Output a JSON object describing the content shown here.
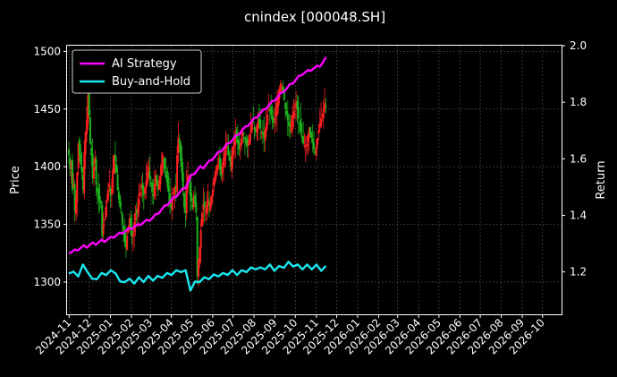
{
  "chart_data": {
    "type": "line",
    "title": "cnindex [000048.SH]",
    "ylabel_left": "Price",
    "ylabel_right": "Return",
    "x_ticks": [
      "2024-11",
      "2024-12",
      "2025-01",
      "2025-02",
      "2025-03",
      "2025-04",
      "2025-05",
      "2025-06",
      "2025-07",
      "2025-08",
      "2025-09",
      "2025-10",
      "2025-11",
      "2025-12",
      "2026-01",
      "2026-02",
      "2026-03",
      "2026-04",
      "2026-05",
      "2026-06",
      "2026-07",
      "2026-08",
      "2026-09",
      "2026-10"
    ],
    "x_range": [
      "2024-10-29",
      "2026-10-29"
    ],
    "y_left_ticks": [
      1300,
      1350,
      1400,
      1450,
      1500
    ],
    "y_left_range": [
      1272,
      1505
    ],
    "y_right_ticks": [
      1.2,
      1.4,
      1.6,
      1.8,
      2.0
    ],
    "y_right_range": [
      1.05,
      2.0
    ],
    "grid": true,
    "legend_position": "top-left",
    "colors": {
      "up": "#ff2020",
      "down": "#1db31d",
      "ai": "#ff00ff",
      "bh": "#1ae8f0",
      "grid": "#555555"
    },
    "candles": {
      "description": "daily OHLC candlesticks, red = up, green = down",
      "close": [
        1410,
        1398,
        1405,
        1380,
        1385,
        1362,
        1372,
        1395,
        1420,
        1410,
        1402,
        1395,
        1380,
        1412,
        1430,
        1440,
        1462,
        1445,
        1420,
        1410,
        1390,
        1400,
        1408,
        1385,
        1378,
        1372,
        1370,
        1368,
        1340,
        1350,
        1355,
        1365,
        1370,
        1380,
        1385,
        1375,
        1380,
        1398,
        1410,
        1405,
        1395,
        1380,
        1372,
        1365,
        1360,
        1350,
        1345,
        1335,
        1330,
        1340,
        1348,
        1355,
        1345,
        1340,
        1342,
        1352,
        1360,
        1358,
        1365,
        1372,
        1378,
        1385,
        1380,
        1375,
        1382,
        1388,
        1395,
        1400,
        1390,
        1385,
        1378,
        1375,
        1385,
        1392,
        1385,
        1380,
        1388,
        1392,
        1400,
        1410,
        1405,
        1398,
        1390,
        1382,
        1378,
        1370,
        1365,
        1372,
        1378,
        1382,
        1380,
        1410,
        1425,
        1420,
        1405,
        1395,
        1380,
        1365,
        1360,
        1385,
        1392,
        1390,
        1375,
        1370,
        1365,
        1375,
        1368,
        1360,
        1305,
        1320,
        1330,
        1345,
        1360,
        1368,
        1365,
        1362,
        1370,
        1372,
        1366,
        1370,
        1375,
        1380,
        1390,
        1395,
        1400,
        1402,
        1405,
        1398,
        1392,
        1400,
        1408,
        1412,
        1420,
        1418,
        1410,
        1405,
        1400,
        1410,
        1418,
        1422,
        1428,
        1425,
        1420,
        1415,
        1418,
        1425,
        1430,
        1428,
        1424,
        1420,
        1418,
        1422,
        1428,
        1435,
        1440,
        1438,
        1432,
        1430,
        1436,
        1440,
        1438,
        1433,
        1430,
        1428,
        1425,
        1432,
        1438,
        1445,
        1450,
        1448,
        1445,
        1440,
        1438,
        1442,
        1448,
        1455,
        1460,
        1468,
        1472,
        1470,
        1465,
        1458,
        1450,
        1445,
        1440,
        1435,
        1432,
        1438,
        1445,
        1448,
        1452,
        1455,
        1450,
        1442,
        1438,
        1430,
        1425,
        1420,
        1418,
        1415,
        1420,
        1428,
        1433,
        1428,
        1425,
        1420,
        1415,
        1412,
        1418,
        1425,
        1432,
        1438,
        1442,
        1445,
        1450,
        1455,
        1452
      ]
    },
    "series": [
      {
        "name": "AI Strategy",
        "axis": "right",
        "values": [
          1.27,
          1.27,
          1.275,
          1.28,
          1.285,
          1.29,
          1.29,
          1.295,
          1.3,
          1.3,
          1.305,
          1.31,
          1.31,
          1.315,
          1.32,
          1.325,
          1.33,
          1.335,
          1.34,
          1.345,
          1.35,
          1.355,
          1.36,
          1.365,
          1.37,
          1.375,
          1.38,
          1.385,
          1.39,
          1.4,
          1.41,
          1.42,
          1.43,
          1.44,
          1.45,
          1.46,
          1.47,
          1.48,
          1.49,
          1.5,
          1.52,
          1.54,
          1.55,
          1.56,
          1.57,
          1.57,
          1.58,
          1.59,
          1.6,
          1.61,
          1.62,
          1.63,
          1.64,
          1.65,
          1.66,
          1.67,
          1.68,
          1.69,
          1.7,
          1.71,
          1.72,
          1.73,
          1.74,
          1.75,
          1.76,
          1.77,
          1.78,
          1.79,
          1.8,
          1.81,
          1.82,
          1.83,
          1.84,
          1.85,
          1.86,
          1.87,
          1.88,
          1.89,
          1.9,
          1.905,
          1.91,
          1.915,
          1.92,
          1.925,
          1.93,
          1.94,
          1.955
        ]
      },
      {
        "name": "Buy-and-Hold",
        "axis": "right",
        "values": [
          1.2,
          1.195,
          1.19,
          1.22,
          1.205,
          1.17,
          1.18,
          1.19,
          1.195,
          1.2,
          1.2,
          1.16,
          1.17,
          1.17,
          1.165,
          1.175,
          1.17,
          1.18,
          1.175,
          1.18,
          1.185,
          1.19,
          1.195,
          1.2,
          1.205,
          1.2,
          1.14,
          1.16,
          1.17,
          1.175,
          1.18,
          1.185,
          1.19,
          1.19,
          1.195,
          1.2,
          1.195,
          1.2,
          1.205,
          1.21,
          1.215,
          1.21,
          1.215,
          1.22,
          1.21,
          1.215,
          1.22,
          1.23,
          1.225,
          1.22,
          1.215,
          1.22,
          1.215,
          1.22,
          1.21,
          1.215
        ]
      }
    ],
    "legend": [
      {
        "label": "AI Strategy",
        "color": "#ff00ff"
      },
      {
        "label": "Buy-and-Hold",
        "color": "#1ae8f0"
      }
    ]
  }
}
